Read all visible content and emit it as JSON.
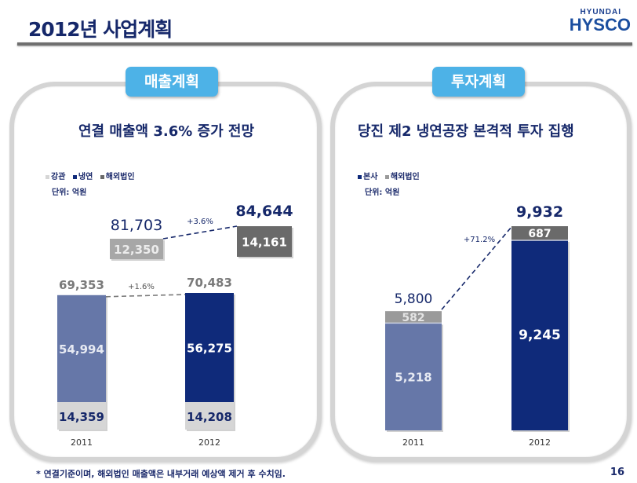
{
  "header": {
    "title": "2012년 사업계획",
    "logo_top": "HYUNDAI",
    "logo_main": "HYSCO"
  },
  "colors": {
    "navy": "#16286a",
    "tab_blue": "#4db2e7",
    "cold_rolled_2011": "#6677a8",
    "cold_rolled_2012": "#0f2a7a",
    "pipe": "#d6d6d6",
    "overseas_2011": "#a7a7a7",
    "overseas_2012": "#6a6a6a",
    "hq_2011": "#6677a8",
    "hq_2012": "#0f2a7a",
    "overseas_invest_2011": "#9a9a9a",
    "overseas_invest_2012": "#6a6a6a"
  },
  "footnote": "* 연결기준이며, 해외법인 매출액은 내부거래 예상액 제거 후 수치임.",
  "page_number": "16",
  "panels": {
    "sales": {
      "tab": "매출계획",
      "heading": "연결 매출액 3.6% 증가 전망",
      "legend": [
        "강관",
        "냉연",
        "해외법인"
      ],
      "unit": "단위: 억원"
    },
    "investment": {
      "tab": "투자계획",
      "heading": "당진 제2 냉연공장 본격적 투자 집행",
      "legend": [
        "본사",
        "해외법인"
      ],
      "unit": "단위: 억원"
    }
  },
  "chart_data": [
    {
      "type": "bar",
      "title": "연결 매출액 3.6% 증가 전망",
      "unit": "억원",
      "categories": [
        "2011",
        "2012"
      ],
      "series": [
        {
          "name": "강관",
          "values": [
            14359,
            14208
          ],
          "labels": [
            "14,359",
            "14,208"
          ]
        },
        {
          "name": "냉연",
          "values": [
            54994,
            56275
          ],
          "labels": [
            "54,994",
            "56,275"
          ]
        },
        {
          "name": "해외법인",
          "values": [
            12350,
            14161
          ],
          "labels": [
            "12,350",
            "14,161"
          ]
        }
      ],
      "domestic_totals": {
        "values": [
          69353,
          70483
        ],
        "labels": [
          "69,353",
          "70,483"
        ],
        "growth": "+1.6%"
      },
      "consolidated_totals": {
        "values": [
          81703,
          84644
        ],
        "labels": [
          "81,703",
          "84,644"
        ],
        "growth": "+3.6%"
      }
    },
    {
      "type": "bar",
      "stacked": true,
      "title": "당진 제2 냉연공장 본격적 투자 집행",
      "unit": "억원",
      "categories": [
        "2011",
        "2012"
      ],
      "series": [
        {
          "name": "본사",
          "values": [
            5218,
            9245
          ],
          "labels": [
            "5,218",
            "9,245"
          ]
        },
        {
          "name": "해외법인",
          "values": [
            582,
            687
          ],
          "labels": [
            "582",
            "687"
          ]
        }
      ],
      "totals": {
        "values": [
          5800,
          9932
        ],
        "labels": [
          "5,800",
          "9,932"
        ],
        "growth": "+71.2%"
      }
    }
  ]
}
